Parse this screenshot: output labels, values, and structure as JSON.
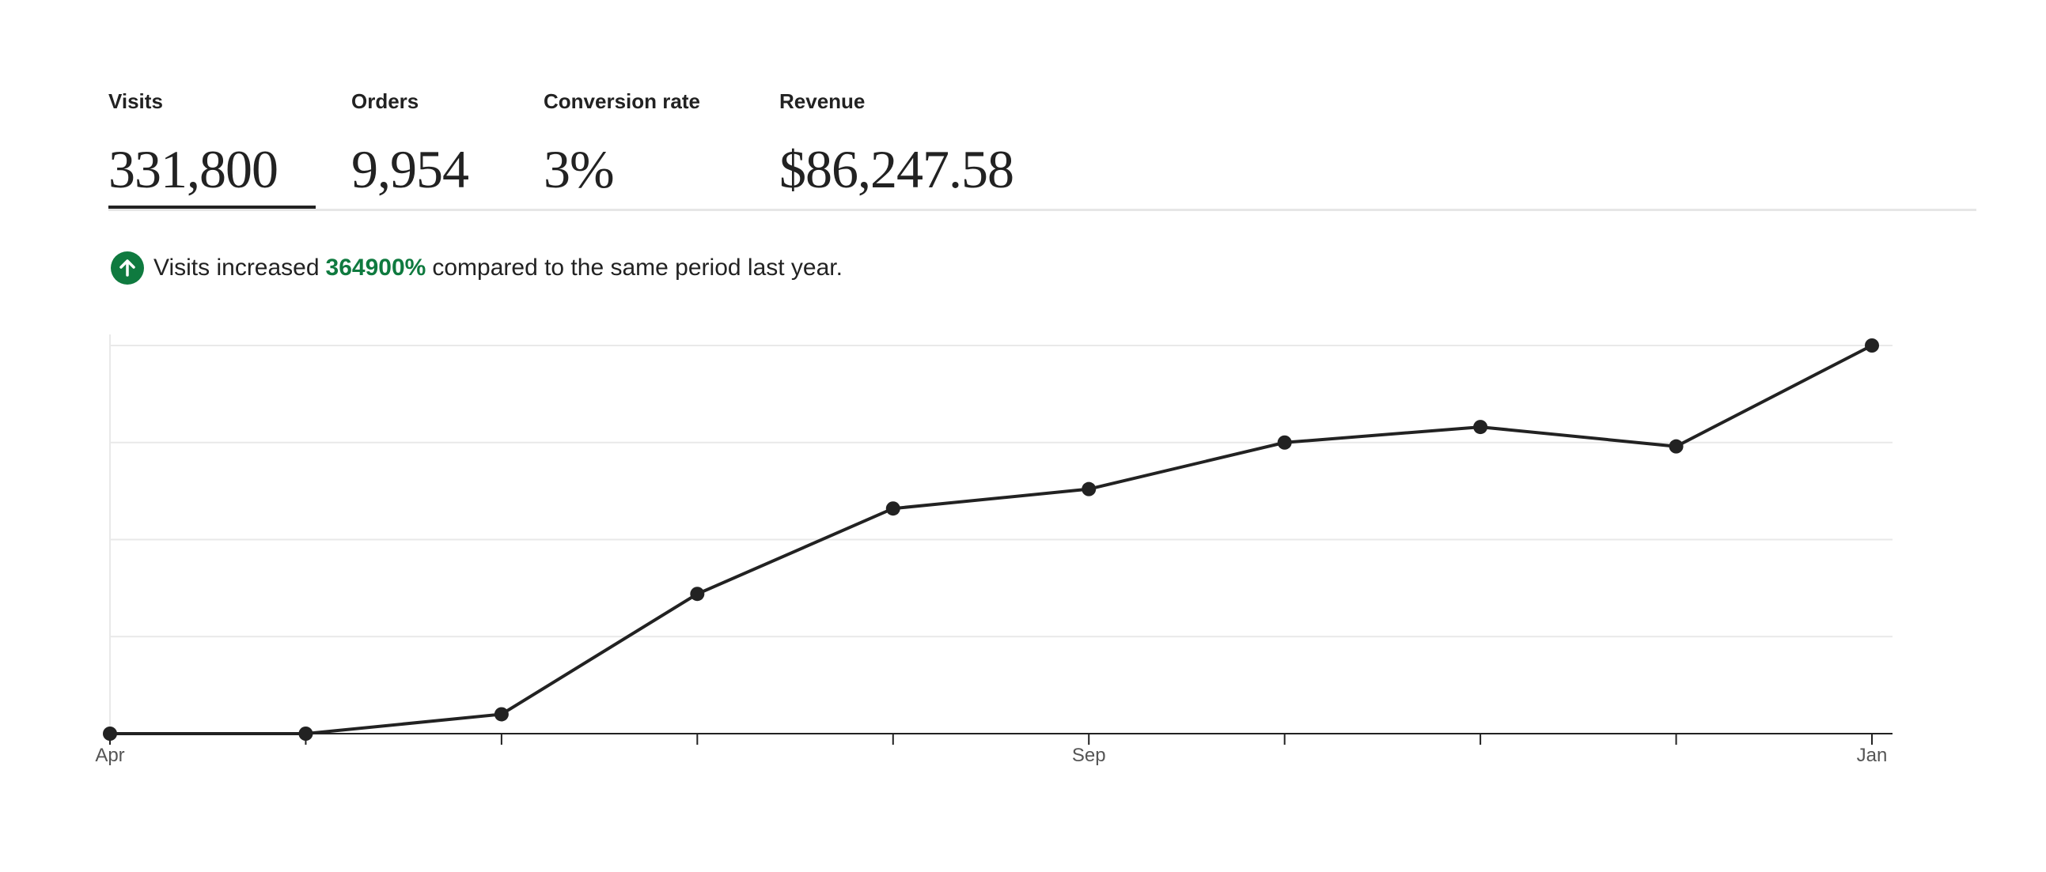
{
  "tabs": [
    {
      "label": "Visits",
      "value": "331,800",
      "active": true
    },
    {
      "label": "Orders",
      "value": "9,954",
      "active": false
    },
    {
      "label": "Conversion rate",
      "value": "3%",
      "active": false
    },
    {
      "label": "Revenue",
      "value": "$86,247.58",
      "active": false
    }
  ],
  "summary": {
    "prefix": "Visits increased",
    "percent": "364900%",
    "suffix": "compared to the same period last year.",
    "icon": "arrow-up-icon",
    "accent_color": "#0f7a3f"
  },
  "chart_data": {
    "type": "line",
    "title": "",
    "xlabel": "",
    "ylabel": "",
    "x_tick_labels": [
      "Apr",
      "",
      "",
      "",
      "",
      "Sep",
      "",
      "",
      "",
      "Jan"
    ],
    "series": [
      {
        "values": [
          0,
          0,
          0.05,
          0.36,
          0.58,
          0.63,
          0.75,
          0.79,
          0.74,
          1.0
        ]
      }
    ],
    "ylim": [
      0,
      1
    ],
    "y_gridlines": 4,
    "grid": true,
    "legend": "none",
    "line_color": "#222222"
  }
}
